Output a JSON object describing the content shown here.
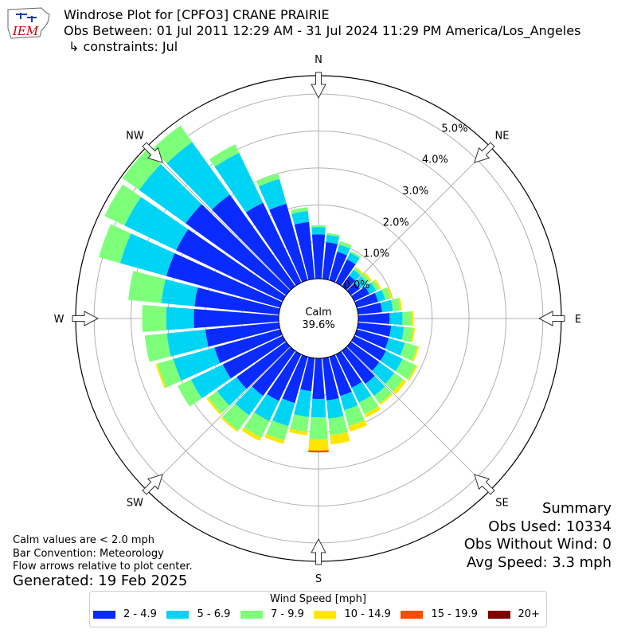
{
  "header": {
    "title": "Windrose Plot for [CPFO3] CRANE PRAIRIE",
    "subtitle": "Obs Between: 01 Jul 2011 12:29 AM - 31 Jul 2024 11:29 PM America/Los_Angeles",
    "constraints": "↳ constraints: Jul",
    "logo_text": "IEM"
  },
  "summary": {
    "heading": "Summary",
    "obs_used": "Obs Used: 10334",
    "obs_without_wind": "Obs Without Wind: 0",
    "avg_speed": "Avg Speed: 3.3 mph"
  },
  "notes": {
    "calm_note": "Calm values are < 2.0 mph",
    "bar_convention": "Bar Convention: Meteorology",
    "flow_arrows": "Flow arrows relative to plot center.",
    "generated": "Generated: 19 Feb 2025"
  },
  "chart_data": {
    "type": "windrose",
    "calm_label": "Calm",
    "calm_value": "39.6%",
    "calm_percent": 39.6,
    "directions": [
      "N",
      "NE",
      "E",
      "SE",
      "S",
      "SW",
      "W",
      "NW"
    ],
    "radial_ticks": [
      "0.0%",
      "1.0%",
      "2.0%",
      "3.0%",
      "4.0%",
      "5.0%"
    ],
    "radial_tick_values": [
      0,
      1,
      2,
      3,
      4,
      5
    ],
    "rmax": 5.5,
    "legend_title": "Wind Speed [mph]",
    "speed_bins": [
      {
        "label": "2 - 4.9",
        "color": "#0a2bff"
      },
      {
        "label": "5 - 6.9",
        "color": "#00d4f5"
      },
      {
        "label": "7 - 9.9",
        "color": "#7dff7a"
      },
      {
        "label": "10 - 14.9",
        "color": "#ffe600"
      },
      {
        "label": "15 - 19.9",
        "color": "#ff4a00"
      },
      {
        "label": "20+",
        "color": "#800000"
      }
    ],
    "sector_angles_deg": [
      0,
      10,
      20,
      30,
      40,
      50,
      60,
      70,
      80,
      90,
      100,
      110,
      120,
      130,
      140,
      150,
      160,
      170,
      180,
      190,
      200,
      210,
      220,
      230,
      240,
      250,
      260,
      270,
      280,
      290,
      300,
      310,
      320,
      330,
      340,
      350
    ],
    "sector_cumulative_percent": [
      [
        1.2,
        1.4,
        1.45,
        1.45,
        1.45,
        1.45
      ],
      [
        1.0,
        1.2,
        1.25,
        1.25,
        1.25,
        1.25
      ],
      [
        0.8,
        1.0,
        1.1,
        1.1,
        1.1,
        1.1
      ],
      [
        0.7,
        0.9,
        0.95,
        0.95,
        0.95,
        0.95
      ],
      [
        0.35,
        0.55,
        0.62,
        0.65,
        0.65,
        0.65
      ],
      [
        0.3,
        0.55,
        0.65,
        0.7,
        0.7,
        0.7
      ],
      [
        0.45,
        0.65,
        0.75,
        0.8,
        0.8,
        0.8
      ],
      [
        0.6,
        0.8,
        0.95,
        1.0,
        1.0,
        1.0
      ],
      [
        0.65,
        0.95,
        1.15,
        1.2,
        1.2,
        1.2
      ],
      [
        0.85,
        1.2,
        1.45,
        1.5,
        1.5,
        1.5
      ],
      [
        0.9,
        1.25,
        1.5,
        1.55,
        1.55,
        1.55
      ],
      [
        0.9,
        1.35,
        1.7,
        1.75,
        1.75,
        1.75
      ],
      [
        0.95,
        1.45,
        1.85,
        1.9,
        1.9,
        1.9
      ],
      [
        0.95,
        1.45,
        1.75,
        1.85,
        1.85,
        1.85
      ],
      [
        1.1,
        1.5,
        1.75,
        1.8,
        1.8,
        1.8
      ],
      [
        1.0,
        1.45,
        1.8,
        1.9,
        1.9,
        1.9
      ],
      [
        1.1,
        1.5,
        1.95,
        2.1,
        2.1,
        2.1
      ],
      [
        1.15,
        1.65,
        2.1,
        2.35,
        2.35,
        2.35
      ],
      [
        1.1,
        1.6,
        2.2,
        2.5,
        2.55,
        2.55
      ],
      [
        0.9,
        1.6,
        2.0,
        2.1,
        2.1,
        2.1
      ],
      [
        1.3,
        1.95,
        2.35,
        2.45,
        2.45,
        2.45
      ],
      [
        1.4,
        2.0,
        2.5,
        2.6,
        2.6,
        2.6
      ],
      [
        1.5,
        2.15,
        2.65,
        2.7,
        2.7,
        2.7
      ],
      [
        1.65,
        2.3,
        2.6,
        2.65,
        2.65,
        2.65
      ],
      [
        1.8,
        2.75,
        3.15,
        3.15,
        3.15,
        3.15
      ],
      [
        1.85,
        3.0,
        3.45,
        3.5,
        3.5,
        3.5
      ],
      [
        2.0,
        3.05,
        3.65,
        3.65,
        3.65,
        3.65
      ],
      [
        2.3,
        3.05,
        3.7,
        3.7,
        3.7,
        3.7
      ],
      [
        2.3,
        3.2,
        4.1,
        4.1,
        4.1,
        4.1
      ],
      [
        3.2,
        4.5,
        5.1,
        5.1,
        5.1,
        5.1
      ],
      [
        3.2,
        4.75,
        5.35,
        5.35,
        5.35,
        5.35
      ],
      [
        3.35,
        4.9,
        5.45,
        5.45,
        5.45,
        5.45
      ],
      [
        3.05,
        4.8,
        5.35,
        5.35,
        5.35,
        5.35
      ],
      [
        2.4,
        3.9,
        4.15,
        4.15,
        4.15,
        4.15
      ],
      [
        2.15,
        2.85,
        3.0,
        3.0,
        3.0,
        3.0
      ],
      [
        1.55,
        1.85,
        1.95,
        1.95,
        1.95,
        1.95
      ]
    ]
  }
}
